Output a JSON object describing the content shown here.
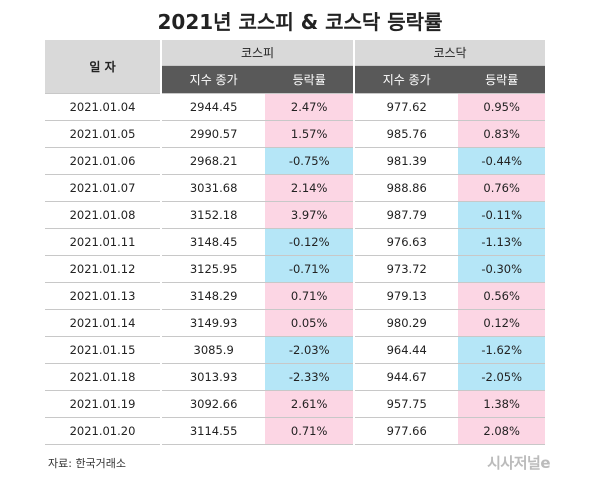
{
  "title": "2021년 코스피 & 코스닥 등락률",
  "table": {
    "date_header": "일 자",
    "groups": [
      "코스피",
      "코스닥"
    ],
    "subheaders": [
      "지수 종가",
      "등락률",
      "지수 종가",
      "등락률"
    ],
    "rows": [
      [
        "2021.01.04",
        "2944.45",
        "2.47%",
        "977.62",
        "0.95%"
      ],
      [
        "2021.01.05",
        "2990.57",
        "1.57%",
        "985.76",
        "0.83%"
      ],
      [
        "2021.01.06",
        "2968.21",
        "-0.75%",
        "981.39",
        "-0.44%"
      ],
      [
        "2021.01.07",
        "3031.68",
        "2.14%",
        "988.86",
        "0.76%"
      ],
      [
        "2021.01.08",
        "3152.18",
        "3.97%",
        "987.79",
        "-0.11%"
      ],
      [
        "2021.01.11",
        "3148.45",
        "-0.12%",
        "976.63",
        "-1.13%"
      ],
      [
        "2021.01.12",
        "3125.95",
        "-0.71%",
        "973.72",
        "-0.30%"
      ],
      [
        "2021.01.13",
        "3148.29",
        "0.71%",
        "979.13",
        "0.56%"
      ],
      [
        "2021.01.14",
        "3149.93",
        "0.05%",
        "980.29",
        "0.12%"
      ],
      [
        "2021.01.15",
        "3085.9",
        "-2.03%",
        "964.44",
        "-1.62%"
      ],
      [
        "2021.01.18",
        "3013.93",
        "-2.33%",
        "944.67",
        "-2.05%"
      ],
      [
        "2021.01.19",
        "3092.66",
        "2.61%",
        "957.75",
        "1.38%"
      ],
      [
        "2021.01.20",
        "3114.55",
        "0.71%",
        "977.66",
        "2.08%"
      ]
    ]
  },
  "source": "자료: 한국거래소",
  "logo": "시사저널e"
}
